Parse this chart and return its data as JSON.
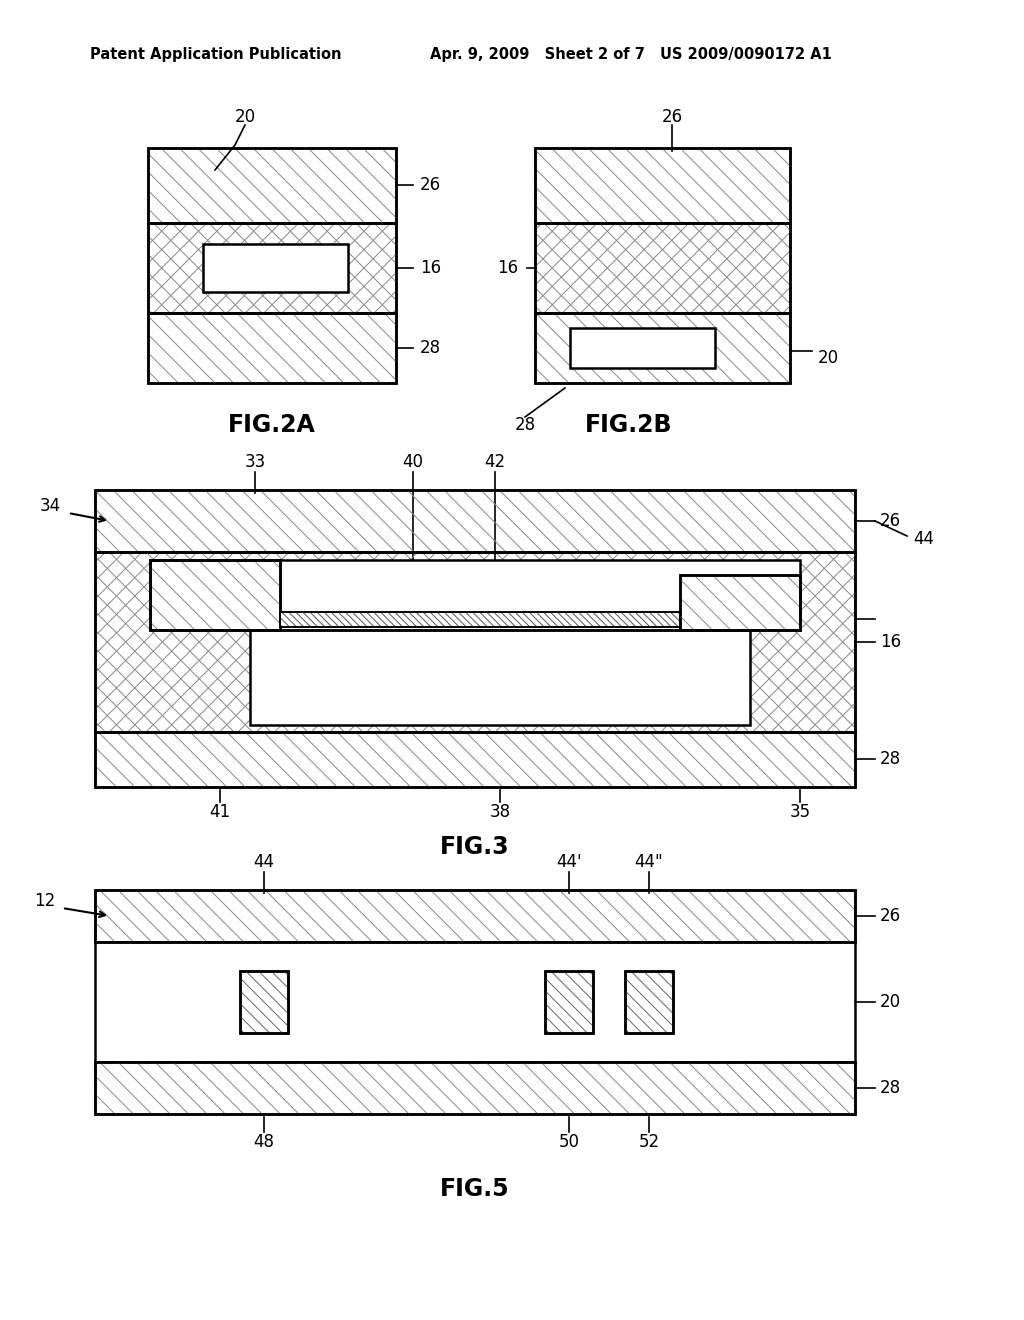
{
  "bg_color": "#ffffff",
  "header_left": "Patent Application Publication",
  "header_mid": "Apr. 9, 2009   Sheet 2 of 7",
  "header_right": "US 2009/0090172 A1",
  "fig2a_caption": "FIG.2A",
  "fig2b_caption": "FIG.2B",
  "fig3_caption": "FIG.3",
  "fig5_caption": "FIG.5",
  "hatch_fwd_color": "#888888",
  "hatch_bwd_color": "#888888",
  "line_color": "#000000"
}
